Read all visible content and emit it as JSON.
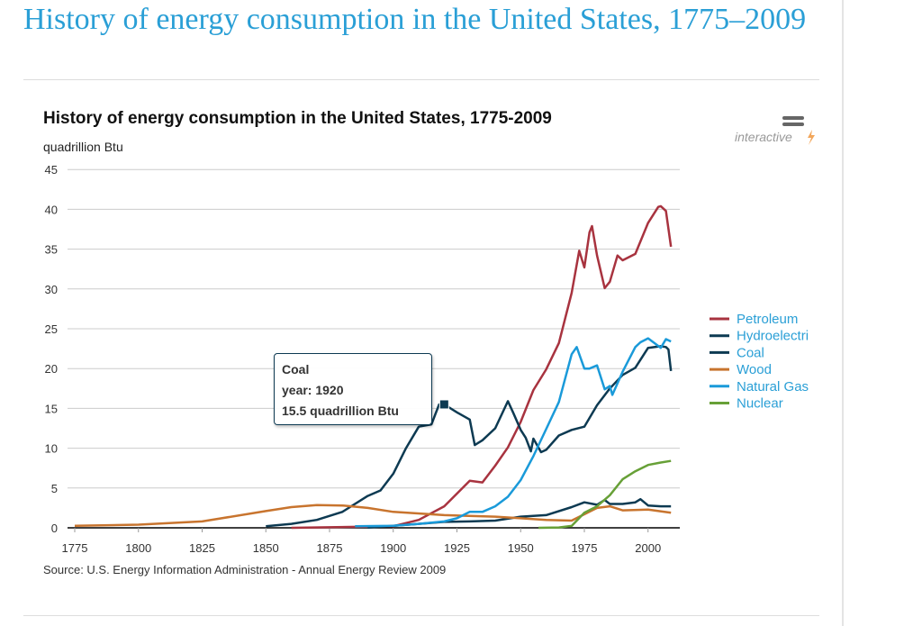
{
  "page_title": "History of energy consumption in the United States, 1775–2009",
  "branding": {
    "menu_icon": "hamburger-icon",
    "label": "interactive",
    "bolt_icon": "lightning-icon"
  },
  "tooltip": {
    "series": "Coal",
    "year_line": "year: 1920",
    "value_line": "15.5 quadrillion Btu"
  },
  "chart_data": {
    "type": "line",
    "title": "History of energy consumption in the United States, 1775-2009",
    "ylabel": "quadrillion Btu",
    "xlabel": "",
    "source": "Source: U.S. Energy Information Administration - Annual Energy Review 2009",
    "xlim": [
      1775,
      2009
    ],
    "ylim": [
      0,
      45
    ],
    "x_ticks": [
      1775,
      1800,
      1825,
      1850,
      1875,
      1900,
      1925,
      1950,
      1975,
      2000
    ],
    "y_ticks": [
      0,
      5,
      10,
      15,
      20,
      25,
      30,
      35,
      40,
      45
    ],
    "grid": true,
    "legend_position": "right",
    "highlight": {
      "series": "Coal",
      "x": 1920,
      "y": 15.5
    },
    "series": [
      {
        "name": "Petroleum",
        "color": "#a8333f",
        "points": [
          [
            1860,
            0
          ],
          [
            1900,
            0.2
          ],
          [
            1910,
            1.0
          ],
          [
            1920,
            2.7
          ],
          [
            1925,
            4.3
          ],
          [
            1930,
            5.9
          ],
          [
            1935,
            5.7
          ],
          [
            1940,
            7.8
          ],
          [
            1945,
            10.1
          ],
          [
            1950,
            13.3
          ],
          [
            1955,
            17.3
          ],
          [
            1960,
            19.9
          ],
          [
            1965,
            23.2
          ],
          [
            1970,
            29.5
          ],
          [
            1973,
            34.8
          ],
          [
            1975,
            32.7
          ],
          [
            1977,
            37.1
          ],
          [
            1978,
            37.9
          ],
          [
            1980,
            34.2
          ],
          [
            1983,
            30.1
          ],
          [
            1985,
            30.9
          ],
          [
            1988,
            34.2
          ],
          [
            1990,
            33.6
          ],
          [
            1995,
            34.4
          ],
          [
            2000,
            38.3
          ],
          [
            2004,
            40.3
          ],
          [
            2005,
            40.4
          ],
          [
            2007,
            39.8
          ],
          [
            2009,
            35.3
          ]
        ]
      },
      {
        "name": "Hydroelectri",
        "color": "#0d3a52",
        "points": [
          [
            1890,
            0.02
          ],
          [
            1900,
            0.25
          ],
          [
            1910,
            0.5
          ],
          [
            1920,
            0.75
          ],
          [
            1930,
            0.8
          ],
          [
            1940,
            0.9
          ],
          [
            1950,
            1.4
          ],
          [
            1960,
            1.6
          ],
          [
            1970,
            2.6
          ],
          [
            1975,
            3.2
          ],
          [
            1980,
            2.9
          ],
          [
            1983,
            3.5
          ],
          [
            1985,
            3.0
          ],
          [
            1990,
            3.0
          ],
          [
            1995,
            3.2
          ],
          [
            1997,
            3.6
          ],
          [
            2000,
            2.8
          ],
          [
            2005,
            2.7
          ],
          [
            2009,
            2.7
          ]
        ]
      },
      {
        "name": "Coal",
        "color": "#0d3a52",
        "points": [
          [
            1850,
            0.2
          ],
          [
            1860,
            0.5
          ],
          [
            1870,
            1.0
          ],
          [
            1880,
            2.0
          ],
          [
            1890,
            4.0
          ],
          [
            1895,
            4.7
          ],
          [
            1900,
            6.8
          ],
          [
            1905,
            10
          ],
          [
            1910,
            12.7
          ],
          [
            1915,
            13
          ],
          [
            1918,
            15.5
          ],
          [
            1920,
            15.5
          ],
          [
            1925,
            14.5
          ],
          [
            1930,
            13.6
          ],
          [
            1932,
            10.4
          ],
          [
            1935,
            11
          ],
          [
            1940,
            12.5
          ],
          [
            1945,
            15.9
          ],
          [
            1947,
            14.5
          ],
          [
            1950,
            12.3
          ],
          [
            1952,
            11.3
          ],
          [
            1954,
            9.6
          ],
          [
            1955,
            11.2
          ],
          [
            1958,
            9.5
          ],
          [
            1960,
            9.8
          ],
          [
            1965,
            11.6
          ],
          [
            1970,
            12.3
          ],
          [
            1975,
            12.7
          ],
          [
            1980,
            15.4
          ],
          [
            1985,
            17.5
          ],
          [
            1990,
            19.2
          ],
          [
            1995,
            20.1
          ],
          [
            2000,
            22.6
          ],
          [
            2005,
            22.8
          ],
          [
            2007,
            22.7
          ],
          [
            2008,
            22.4
          ],
          [
            2009,
            19.7
          ]
        ]
      },
      {
        "name": "Wood",
        "color": "#c8742e",
        "points": [
          [
            1775,
            0.25
          ],
          [
            1800,
            0.4
          ],
          [
            1825,
            0.8
          ],
          [
            1850,
            2.1
          ],
          [
            1860,
            2.6
          ],
          [
            1870,
            2.85
          ],
          [
            1880,
            2.8
          ],
          [
            1890,
            2.5
          ],
          [
            1900,
            2.0
          ],
          [
            1920,
            1.6
          ],
          [
            1940,
            1.4
          ],
          [
            1950,
            1.2
          ],
          [
            1960,
            1.0
          ],
          [
            1970,
            0.9
          ],
          [
            1980,
            2.5
          ],
          [
            1985,
            2.7
          ],
          [
            1990,
            2.2
          ],
          [
            2000,
            2.3
          ],
          [
            2009,
            1.9
          ]
        ]
      },
      {
        "name": "Natural Gas",
        "color": "#1a9ad9",
        "points": [
          [
            1885,
            0.2
          ],
          [
            1900,
            0.25
          ],
          [
            1910,
            0.5
          ],
          [
            1920,
            0.8
          ],
          [
            1925,
            1.2
          ],
          [
            1930,
            2.0
          ],
          [
            1935,
            2.0
          ],
          [
            1940,
            2.7
          ],
          [
            1945,
            3.9
          ],
          [
            1950,
            6.0
          ],
          [
            1955,
            9.0
          ],
          [
            1960,
            12.4
          ],
          [
            1965,
            15.8
          ],
          [
            1970,
            21.8
          ],
          [
            1972,
            22.7
          ],
          [
            1975,
            20.0
          ],
          [
            1977,
            20.0
          ],
          [
            1980,
            20.4
          ],
          [
            1983,
            17.4
          ],
          [
            1985,
            17.8
          ],
          [
            1986,
            16.7
          ],
          [
            1990,
            19.6
          ],
          [
            1995,
            22.7
          ],
          [
            1997,
            23.3
          ],
          [
            2000,
            23.8
          ],
          [
            2005,
            22.6
          ],
          [
            2007,
            23.7
          ],
          [
            2009,
            23.4
          ]
        ]
      },
      {
        "name": "Nuclear",
        "color": "#67a037",
        "points": [
          [
            1957,
            0
          ],
          [
            1965,
            0.04
          ],
          [
            1970,
            0.24
          ],
          [
            1975,
            1.9
          ],
          [
            1980,
            2.7
          ],
          [
            1985,
            4.1
          ],
          [
            1990,
            6.1
          ],
          [
            1995,
            7.1
          ],
          [
            2000,
            7.9
          ],
          [
            2005,
            8.2
          ],
          [
            2009,
            8.4
          ]
        ]
      }
    ]
  }
}
